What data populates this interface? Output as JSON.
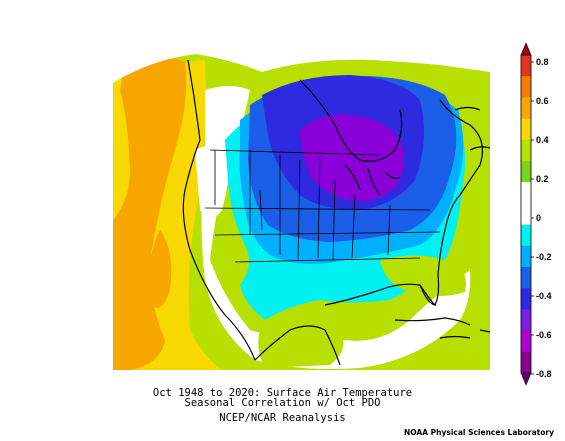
{
  "figure": {
    "title_line1": "Oct 1948 to 2020: Surface Air Temperature",
    "title_line2": "Seasonal Correlation w/ Oct PDO",
    "subtitle": "NCEP/NCAR Reanalysis",
    "credit": "NOAA Physical Sciences Laboratory"
  },
  "colorbar": {
    "ticks": [
      "0.8",
      "0.6",
      "0.4",
      "0.2",
      "0",
      "-0.2",
      "-0.4",
      "-0.6",
      "-0.8"
    ],
    "colors": [
      "#e0341c",
      "#f57b00",
      "#f9a600",
      "#f7d800",
      "#b7e000",
      "#7ad41c",
      "#ffffff",
      "#ffffff",
      "#00f1f1",
      "#00b0ff",
      "#1b5ee8",
      "#2d2ae0",
      "#7a1fe0",
      "#b000d0",
      "#8a0090"
    ],
    "range": [
      -0.8,
      0.8
    ]
  },
  "field_colors": {
    "strong_positive": "#f7a600",
    "positive_yellow": "#f7d800",
    "weak_positive": "#b7e000",
    "neutral": "#ffffff",
    "weak_negative": "#00f1f1",
    "negative": "#00b0ff",
    "moderate_negative": "#1b5ee8",
    "strong_negative": "#2d2ae0",
    "strongest_negative": "#8a00d8"
  }
}
